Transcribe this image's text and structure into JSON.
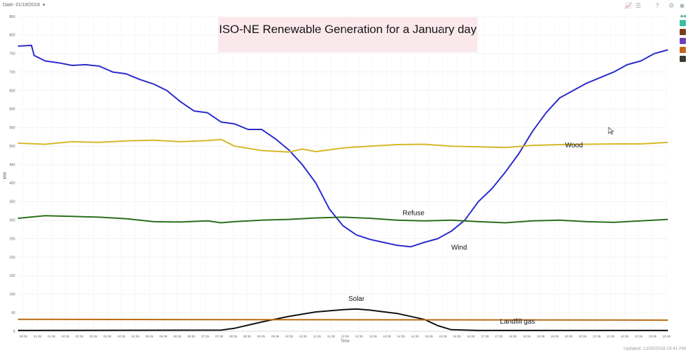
{
  "toolbar": {
    "date_label": "Date: 01/19/2018",
    "caret": "▼",
    "icons": [
      "line-chart-icon",
      "list-icon",
      "help-icon",
      "gear-icon",
      "camera-icon"
    ],
    "icon_glyphs": [
      "📈",
      "☰",
      "?",
      "⚙",
      "◙"
    ],
    "collapse_glyph": "◂◂"
  },
  "legend_swatches": [
    {
      "name": "teal",
      "color": "#36c0a0"
    },
    {
      "name": "brown",
      "color": "#7a3b1a"
    },
    {
      "name": "purple",
      "color": "#6a3fb8"
    },
    {
      "name": "orange",
      "color": "#c8641a"
    },
    {
      "name": "dark",
      "color": "#3d3a35"
    }
  ],
  "footer": {
    "updated": "Updated: 12/20/2018 03:41 PM"
  },
  "chart_data": {
    "type": "line",
    "title": "ISO-NE Renewable Generation for a January day",
    "xlabel": "Time",
    "ylabel": "MW",
    "ylim": [
      0,
      850
    ],
    "yticks": [
      0,
      50,
      100,
      150,
      200,
      250,
      300,
      350,
      400,
      450,
      500,
      550,
      600,
      650,
      700,
      750,
      800,
      850
    ],
    "xticks": [
      "00:39",
      "01:39",
      "01:39",
      "02:39",
      "02:39",
      "03:39",
      "03:39",
      "04:39",
      "04:39",
      "05:39",
      "05:39",
      "06:39",
      "06:39",
      "07:39",
      "07:39",
      "08:39",
      "08:39",
      "09:39",
      "09:39",
      "10:39",
      "10:39",
      "11:39",
      "11:39",
      "12:39",
      "12:39",
      "13:39",
      "13:39",
      "14:39",
      "14:39",
      "15:39",
      "15:39",
      "16:39",
      "16:39",
      "17:39",
      "17:39",
      "18:39",
      "18:39",
      "19:39",
      "19:39",
      "20:39",
      "20:39",
      "21:39",
      "21:39",
      "22:39",
      "22:39",
      "23:39",
      "23:39"
    ],
    "x_range": [
      0,
      24
    ],
    "series": [
      {
        "name": "Wind",
        "color": "#2a2acc",
        "points": [
          [
            0,
            770
          ],
          [
            0.5,
            772
          ],
          [
            0.6,
            745
          ],
          [
            1,
            730
          ],
          [
            1.5,
            725
          ],
          [
            2,
            718
          ],
          [
            2.5,
            720
          ],
          [
            3,
            716
          ],
          [
            3.5,
            700
          ],
          [
            4,
            695
          ],
          [
            4.5,
            680
          ],
          [
            5,
            668
          ],
          [
            5.5,
            650
          ],
          [
            6,
            620
          ],
          [
            6.5,
            595
          ],
          [
            7,
            590
          ],
          [
            7.5,
            565
          ],
          [
            8,
            560
          ],
          [
            8.5,
            545
          ],
          [
            9,
            545
          ],
          [
            9.5,
            520
          ],
          [
            10,
            490
          ],
          [
            10.5,
            450
          ],
          [
            11,
            400
          ],
          [
            11.5,
            330
          ],
          [
            12,
            285
          ],
          [
            12.5,
            260
          ],
          [
            13,
            248
          ],
          [
            13.5,
            240
          ],
          [
            14,
            232
          ],
          [
            14.5,
            228
          ],
          [
            15,
            240
          ],
          [
            15.5,
            250
          ],
          [
            16,
            270
          ],
          [
            16.5,
            300
          ],
          [
            17,
            350
          ],
          [
            17.5,
            385
          ],
          [
            18,
            430
          ],
          [
            18.5,
            480
          ],
          [
            19,
            540
          ],
          [
            19.5,
            590
          ],
          [
            20,
            630
          ],
          [
            20.5,
            650
          ],
          [
            21,
            670
          ],
          [
            21.5,
            685
          ],
          [
            22,
            700
          ],
          [
            22.5,
            720
          ],
          [
            23,
            730
          ],
          [
            23.5,
            750
          ],
          [
            24,
            760
          ]
        ],
        "label_pos": [
          16,
          220
        ]
      },
      {
        "name": "Wood",
        "color": "#d7b828",
        "points": [
          [
            0,
            508
          ],
          [
            1,
            505
          ],
          [
            2,
            512
          ],
          [
            3,
            510
          ],
          [
            4,
            514
          ],
          [
            5,
            516
          ],
          [
            6,
            512
          ],
          [
            7,
            515
          ],
          [
            7.5,
            518
          ],
          [
            8,
            500
          ],
          [
            9,
            488
          ],
          [
            10,
            484
          ],
          [
            10.5,
            492
          ],
          [
            11,
            485
          ],
          [
            12,
            495
          ],
          [
            13,
            500
          ],
          [
            14,
            504
          ],
          [
            15,
            505
          ],
          [
            16,
            500
          ],
          [
            17,
            498
          ],
          [
            18,
            496
          ],
          [
            19,
            502
          ],
          [
            20,
            504
          ],
          [
            21,
            505
          ],
          [
            22,
            506
          ],
          [
            23,
            506
          ],
          [
            24,
            510
          ]
        ],
        "label_pos": [
          20.2,
          497
        ]
      },
      {
        "name": "Refuse",
        "color": "#2a6e1a",
        "points": [
          [
            0,
            305
          ],
          [
            1,
            312
          ],
          [
            2,
            310
          ],
          [
            3,
            308
          ],
          [
            4,
            304
          ],
          [
            5,
            296
          ],
          [
            6,
            295
          ],
          [
            7,
            298
          ],
          [
            7.5,
            293
          ],
          [
            8,
            296
          ],
          [
            9,
            300
          ],
          [
            10,
            302
          ],
          [
            11,
            306
          ],
          [
            12,
            308
          ],
          [
            13,
            305
          ],
          [
            14,
            300
          ],
          [
            15,
            298
          ],
          [
            16,
            300
          ],
          [
            17,
            296
          ],
          [
            18,
            293
          ],
          [
            19,
            298
          ],
          [
            20,
            300
          ],
          [
            21,
            296
          ],
          [
            22,
            294
          ],
          [
            23,
            298
          ],
          [
            24,
            302
          ]
        ],
        "label_pos": [
          14.2,
          313
        ]
      },
      {
        "name": "Solar",
        "color": "#111111",
        "points": [
          [
            0,
            2
          ],
          [
            7.5,
            3
          ],
          [
            8,
            8
          ],
          [
            9,
            25
          ],
          [
            10,
            40
          ],
          [
            11,
            52
          ],
          [
            12,
            58
          ],
          [
            12.5,
            60
          ],
          [
            13,
            57
          ],
          [
            14,
            48
          ],
          [
            15,
            32
          ],
          [
            15.5,
            15
          ],
          [
            16,
            4
          ],
          [
            17,
            2
          ],
          [
            24,
            2
          ]
        ],
        "label_pos": [
          12.2,
          82
        ]
      },
      {
        "name": "Landfill gas",
        "color": "#b86a10",
        "points": [
          [
            0,
            32
          ],
          [
            24,
            30
          ]
        ],
        "label_pos": [
          17.8,
          20
        ]
      }
    ]
  }
}
